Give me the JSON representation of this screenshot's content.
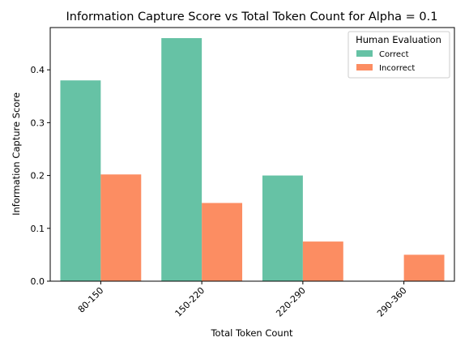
{
  "chart_data": {
    "type": "bar",
    "title": "Information Capture Score vs Total Token Count for Alpha = 0.1",
    "xlabel": "Total Token Count",
    "ylabel": "Information Capture Score",
    "categories": [
      "80-150",
      "150-220",
      "220-290",
      "290-360"
    ],
    "series": [
      {
        "name": "Correct",
        "color": "#66c2a5",
        "values": [
          0.38,
          0.46,
          0.2,
          null
        ]
      },
      {
        "name": "Incorrect",
        "color": "#fc8d62",
        "values": [
          0.202,
          0.148,
          0.075,
          0.05
        ]
      }
    ],
    "ylim": [
      0,
      0.48
    ],
    "yticks": [
      "0.0",
      "0.1",
      "0.2",
      "0.3",
      "0.4"
    ],
    "legend": {
      "title": "Human Evaluation",
      "placement": "top-right"
    },
    "grid": false
  }
}
